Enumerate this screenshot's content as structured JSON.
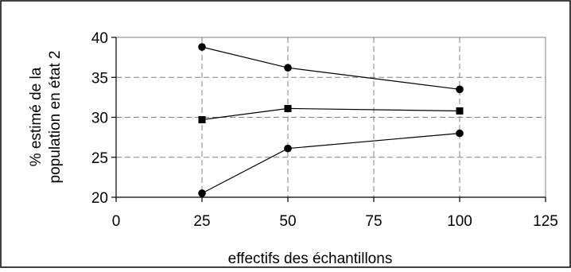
{
  "chart_data": {
    "type": "line",
    "title": "",
    "xlabel": "effectifs des échantillons",
    "ylabel": [
      "% estimé de la",
      "population en état 2"
    ],
    "xlim": [
      0,
      125
    ],
    "ylim": [
      20,
      40
    ],
    "x_ticks": [
      "0",
      "25",
      "50",
      "75",
      "100",
      "125"
    ],
    "y_ticks": [
      "20",
      "25",
      "30",
      "35",
      "40"
    ],
    "grid": true,
    "legend": "none",
    "x": [
      25,
      50,
      100
    ],
    "series": [
      {
        "marker": "circle",
        "values": [
          38.8,
          36.2,
          33.5
        ]
      },
      {
        "marker": "square",
        "values": [
          29.7,
          31.1,
          30.8
        ]
      },
      {
        "marker": "circle",
        "values": [
          20.5,
          26.1,
          28.0
        ]
      }
    ],
    "colors": {
      "line": "#000000",
      "grid": "#808080",
      "frame": "#000000"
    }
  }
}
